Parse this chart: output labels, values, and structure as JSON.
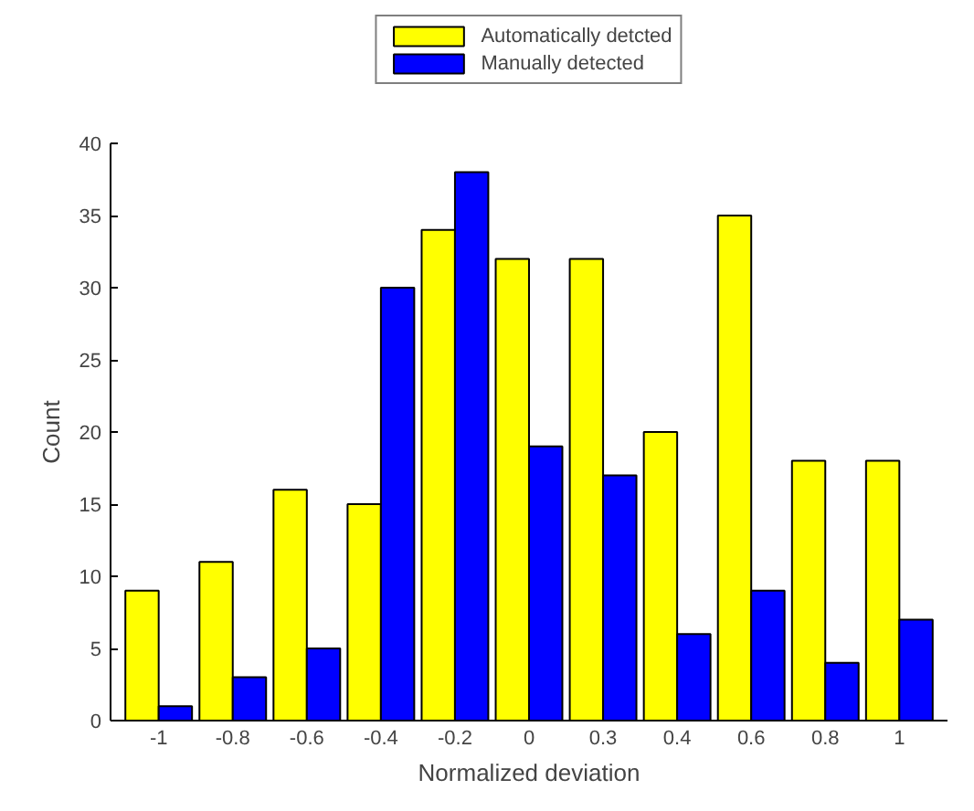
{
  "chart_data": {
    "type": "bar",
    "xlabel": "Normalized deviation",
    "ylabel": "Count",
    "categories": [
      "-1",
      "-0.8",
      "-0.6",
      "-0.4",
      "-0.2",
      "0",
      "0.3",
      "0.4",
      "0.6",
      "0.8",
      "1"
    ],
    "series": [
      {
        "name": "Automatically detcted",
        "color": "#ffff00",
        "values": [
          9,
          11,
          16,
          15,
          34,
          32,
          32,
          20,
          35,
          18,
          18
        ]
      },
      {
        "name": "Manually detected",
        "color": "#0000ff",
        "values": [
          1,
          3,
          5,
          30,
          38,
          19,
          17,
          6,
          9,
          4,
          7
        ]
      }
    ],
    "ylim": [
      0,
      40
    ],
    "yticks": [
      0,
      5,
      10,
      15,
      20,
      25,
      30,
      35,
      40
    ],
    "grid": false,
    "legend": "top"
  }
}
